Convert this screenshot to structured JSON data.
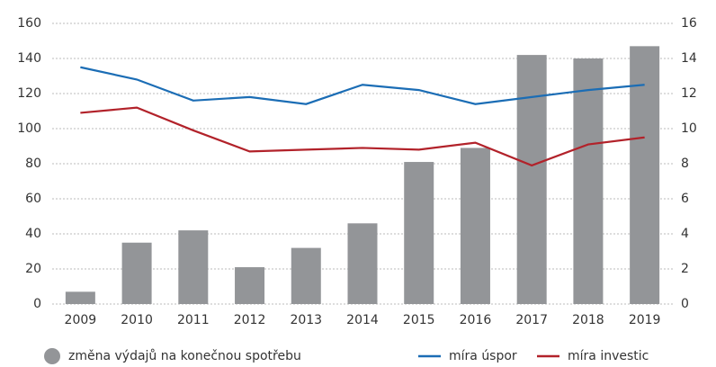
{
  "chart_data": {
    "type": "bar",
    "categories": [
      "2009",
      "2010",
      "2011",
      "2012",
      "2013",
      "2014",
      "2015",
      "2016",
      "2017",
      "2018",
      "2019"
    ],
    "series": [
      {
        "name": "změna výdajů na konečnou spotřebu",
        "type": "bar",
        "color": "#939598",
        "values": [
          7,
          35,
          42,
          21,
          32,
          46,
          81,
          89,
          142,
          140,
          147
        ]
      },
      {
        "name": "míra úspor",
        "type": "line",
        "axis": "y2",
        "color": "#1b6db5",
        "values": [
          13.5,
          12.8,
          11.6,
          11.8,
          11.4,
          12.5,
          12.2,
          11.4,
          11.8,
          12.2,
          12.5
        ]
      },
      {
        "name": "míra investic",
        "type": "line",
        "axis": "y2",
        "color": "#b2222a",
        "values": [
          10.9,
          11.2,
          9.9,
          8.7,
          8.8,
          8.9,
          8.8,
          9.2,
          7.9,
          9.1,
          9.5
        ]
      }
    ],
    "ylim": [
      0,
      160
    ],
    "yticks": [
      0,
      20,
      40,
      60,
      80,
      100,
      120,
      140,
      160
    ],
    "y2lim": [
      0,
      16
    ],
    "y2ticks": [
      0,
      2,
      4,
      6,
      8,
      10,
      12,
      14,
      16
    ],
    "grid": true,
    "legend": "bottom"
  }
}
